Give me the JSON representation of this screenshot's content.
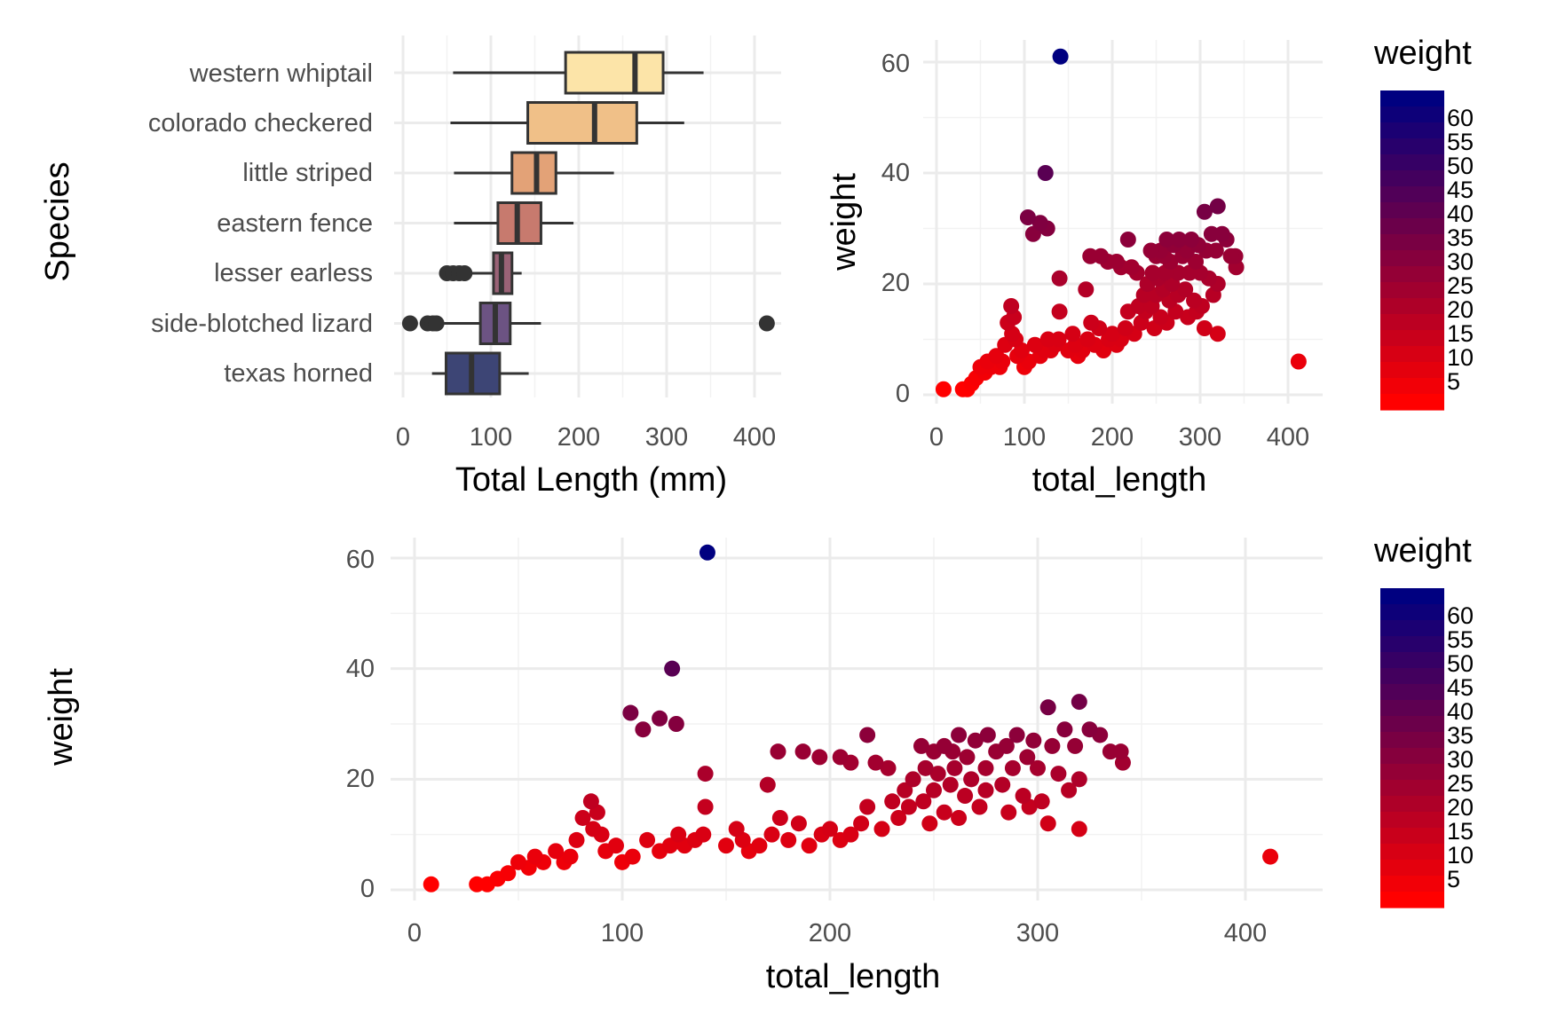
{
  "chart_data": [
    {
      "type": "box",
      "orientation": "horizontal",
      "ylabel": "Species",
      "xlabel": "Total Length (mm)",
      "xlim": [
        0,
        430
      ],
      "x_ticks": [
        0,
        100,
        200,
        300,
        400
      ],
      "grid": true,
      "categories": [
        "western whiptail",
        "colorado checkered",
        "little striped",
        "eastern fence",
        "lesser earless",
        "side-blotched lizard",
        "texas horned"
      ],
      "boxes": [
        {
          "species": "western whiptail",
          "min": 57,
          "q1": 185,
          "median": 264,
          "q3": 296,
          "max": 342,
          "outliers": [],
          "color": "#fce4a8"
        },
        {
          "species": "colorado checkered",
          "min": 54,
          "q1": 142,
          "median": 218,
          "q3": 266,
          "max": 320,
          "outliers": [],
          "color": "#f0c088"
        },
        {
          "species": "little striped",
          "min": 58,
          "q1": 124,
          "median": 152,
          "q3": 174,
          "max": 240,
          "outliers": [],
          "color": "#e3a277"
        },
        {
          "species": "eastern fence",
          "min": 58,
          "q1": 108,
          "median": 130,
          "q3": 157,
          "max": 194,
          "outliers": [],
          "color": "#c77a6e"
        },
        {
          "species": "lesser earless",
          "min": 73,
          "q1": 103,
          "median": 112,
          "q3": 124,
          "max": 135,
          "outliers": [
            50,
            57,
            64,
            70
          ],
          "color": "#9a6276"
        },
        {
          "species": "side-blotched lizard",
          "min": 47,
          "q1": 88,
          "median": 105,
          "q3": 122,
          "max": 157,
          "outliers": [
            8,
            28,
            34,
            38,
            414
          ],
          "color": "#6c5383"
        },
        {
          "species": "texas horned",
          "min": 33,
          "q1": 49,
          "median": 78,
          "q3": 110,
          "max": 143,
          "outliers": [],
          "color": "#3d4575"
        }
      ]
    },
    {
      "type": "scatter",
      "xlabel": "total_length",
      "ylabel": "weight",
      "xlim": [
        0,
        430
      ],
      "ylim": [
        0,
        62
      ],
      "x_ticks": [
        0,
        100,
        200,
        300,
        400
      ],
      "y_ticks": [
        0,
        20,
        40,
        60
      ],
      "grid": true,
      "color_by": "weight",
      "colors": {
        "low": "#ff0000",
        "high": "#000080"
      },
      "legend": {
        "title": "weight",
        "labels": [
          "60",
          "55",
          "50",
          "45",
          "40",
          "35",
          "30",
          "25",
          "20",
          "15",
          "10",
          "5"
        ],
        "position": "right"
      }
    },
    {
      "type": "scatter",
      "xlabel": "total_length",
      "ylabel": "weight",
      "xlim": [
        0,
        430
      ],
      "ylim": [
        0,
        62
      ],
      "x_ticks": [
        0,
        100,
        200,
        300,
        400
      ],
      "y_ticks": [
        0,
        20,
        40,
        60
      ],
      "grid": true,
      "color_by": "weight",
      "colors": {
        "low": "#ff0000",
        "high": "#000080"
      },
      "legend": {
        "title": "weight",
        "labels": [
          "60",
          "55",
          "50",
          "45",
          "40",
          "35",
          "30",
          "25",
          "20",
          "15",
          "10",
          "5"
        ],
        "position": "right"
      }
    }
  ],
  "scatter_points": [
    [
      141,
      61
    ],
    [
      124,
      40
    ],
    [
      104,
      32
    ],
    [
      118,
      31
    ],
    [
      110,
      29
    ],
    [
      126,
      30
    ],
    [
      320,
      34
    ],
    [
      305,
      33
    ],
    [
      313,
      29
    ],
    [
      325,
      29
    ],
    [
      330,
      28
    ],
    [
      340,
      25
    ],
    [
      341,
      23
    ],
    [
      335,
      25
    ],
    [
      318,
      26
    ],
    [
      298,
      27
    ],
    [
      290,
      28
    ],
    [
      285,
      26
    ],
    [
      276,
      28
    ],
    [
      270,
      27
    ],
    [
      262,
      28
    ],
    [
      255,
      26
    ],
    [
      250,
      25
    ],
    [
      244,
      26
    ],
    [
      259,
      25
    ],
    [
      266,
      24
    ],
    [
      280,
      25
    ],
    [
      295,
      24
    ],
    [
      307,
      26
    ],
    [
      300,
      22
    ],
    [
      310,
      21
    ],
    [
      320,
      20
    ],
    [
      315,
      18
    ],
    [
      288,
      22
    ],
    [
      275,
      22
    ],
    [
      268,
      20
    ],
    [
      260,
      22
    ],
    [
      252,
      21
    ],
    [
      246,
      22
    ],
    [
      240,
      20
    ],
    [
      236,
      18
    ],
    [
      230,
      16
    ],
    [
      228,
      22
    ],
    [
      222,
      23
    ],
    [
      210,
      23
    ],
    [
      205,
      24
    ],
    [
      218,
      28
    ],
    [
      195,
      24
    ],
    [
      187,
      25
    ],
    [
      170,
      19
    ],
    [
      175,
      25
    ],
    [
      283,
      19
    ],
    [
      293,
      17
    ],
    [
      302,
      16
    ],
    [
      275,
      18
    ],
    [
      265,
      17
    ],
    [
      258,
      19
    ],
    [
      250,
      18
    ],
    [
      245,
      16
    ],
    [
      238,
      15
    ],
    [
      320,
      11
    ],
    [
      412,
      6
    ],
    [
      272,
      15
    ],
    [
      286,
      14
    ],
    [
      296,
      15
    ],
    [
      305,
      12
    ],
    [
      262,
      13
    ],
    [
      255,
      14
    ],
    [
      248,
      12
    ],
    [
      233,
      13
    ],
    [
      225,
      11
    ],
    [
      218,
      15
    ],
    [
      215,
      12
    ],
    [
      210,
      10
    ],
    [
      205,
      9
    ],
    [
      200,
      11
    ],
    [
      196,
      10
    ],
    [
      190,
      8
    ],
    [
      185,
      12
    ],
    [
      180,
      9
    ],
    [
      176,
      13
    ],
    [
      172,
      10
    ],
    [
      166,
      8
    ],
    [
      161,
      7
    ],
    [
      158,
      9
    ],
    [
      155,
      11
    ],
    [
      150,
      8
    ],
    [
      140,
      21
    ],
    [
      140,
      15
    ],
    [
      139,
      10
    ],
    [
      135,
      9
    ],
    [
      130,
      8
    ],
    [
      127,
      10
    ],
    [
      123,
      8
    ],
    [
      118,
      7
    ],
    [
      112,
      9
    ],
    [
      105,
      6
    ],
    [
      100,
      5
    ],
    [
      97,
      8
    ],
    [
      92,
      7
    ],
    [
      85,
      16
    ],
    [
      88,
      14
    ],
    [
      81,
      13
    ],
    [
      86,
      11
    ],
    [
      90,
      10
    ],
    [
      78,
      9
    ],
    [
      75,
      6
    ],
    [
      72,
      5
    ],
    [
      68,
      7
    ],
    [
      62,
      5
    ],
    [
      58,
      6
    ],
    [
      55,
      4
    ],
    [
      50,
      5
    ],
    [
      45,
      3
    ],
    [
      40,
      2
    ],
    [
      35,
      1
    ],
    [
      30,
      1
    ],
    [
      8,
      1
    ]
  ]
}
